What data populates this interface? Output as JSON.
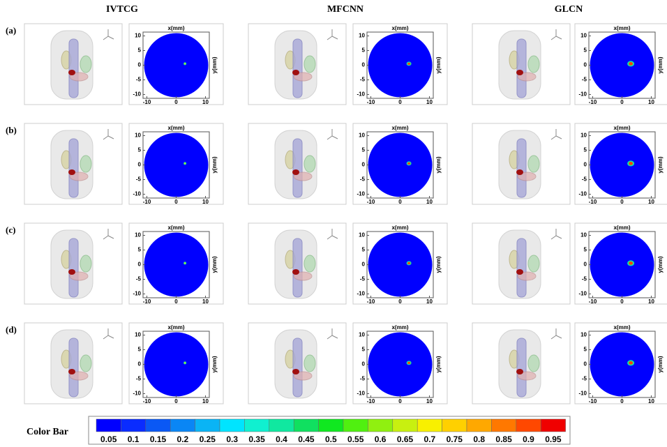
{
  "columns": [
    "IVTCG",
    "MFCNN",
    "GLCN"
  ],
  "rows": [
    "(a)",
    "(b)",
    "(c)",
    "(d)"
  ],
  "plot": {
    "x_label": "x(mm)",
    "y_label": "y(mm)",
    "xticks": [
      -10,
      0,
      10
    ],
    "yticks": [
      10,
      5,
      0,
      -5,
      -10
    ]
  },
  "color_bar": {
    "label": "Color Bar",
    "ticks": [
      "0.05",
      "0.1",
      "0.15",
      "0.2",
      "0.25",
      "0.3",
      "0.35",
      "0.4",
      "0.45",
      "0.5",
      "0.55",
      "0.6",
      "0.65",
      "0.7",
      "0.75",
      "0.8",
      "0.85",
      "0.9",
      "0.95"
    ],
    "colors": [
      "#0000ff",
      "#0a2cff",
      "#0a58f5",
      "#0a86f5",
      "#0ab4f5",
      "#00e4ff",
      "#10f0d0",
      "#10e8a0",
      "#10e060",
      "#10e820",
      "#50f010",
      "#90f010",
      "#c8f010",
      "#f8f000",
      "#ffd000",
      "#ffa800",
      "#ff7800",
      "#ff4800",
      "#f00000"
    ]
  }
}
